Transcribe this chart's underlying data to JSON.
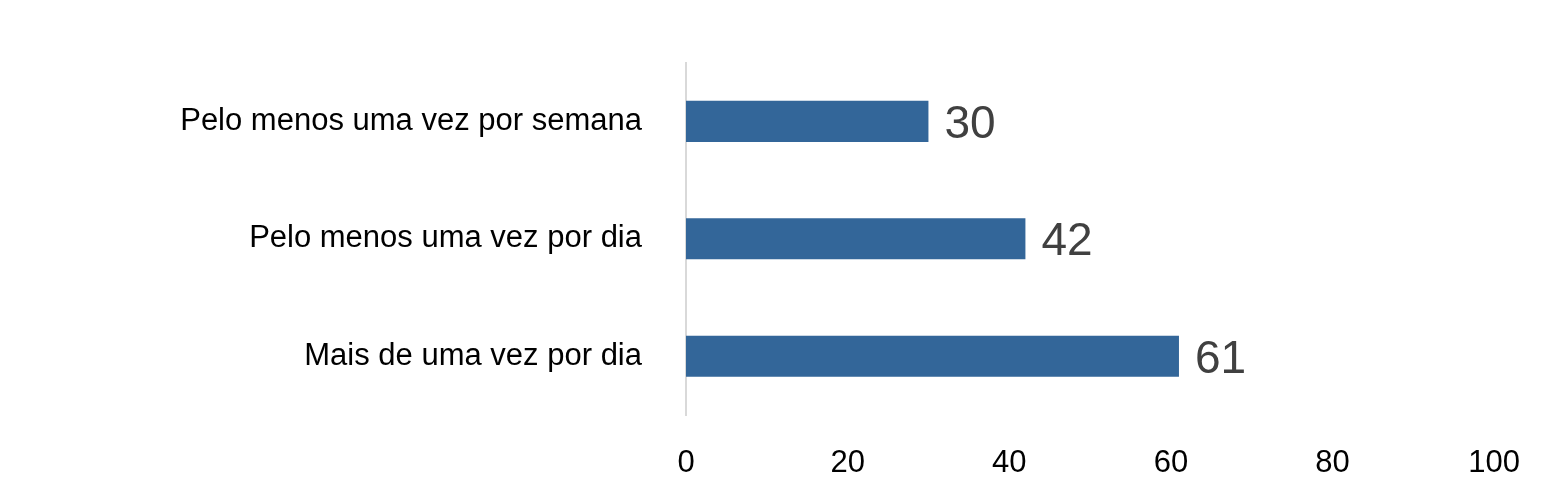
{
  "chart_data": {
    "type": "bar",
    "orientation": "horizontal",
    "categories": [
      "Pelo menos uma vez por semana",
      "Pelo menos uma vez por dia",
      "Mais de uma vez por dia"
    ],
    "values": [
      30,
      42,
      61
    ],
    "color": "#336699",
    "xlim": [
      0,
      100
    ],
    "xticks": [
      0,
      20,
      40,
      60,
      80,
      100
    ],
    "grid": false,
    "legend": false,
    "data_labels": true
  }
}
